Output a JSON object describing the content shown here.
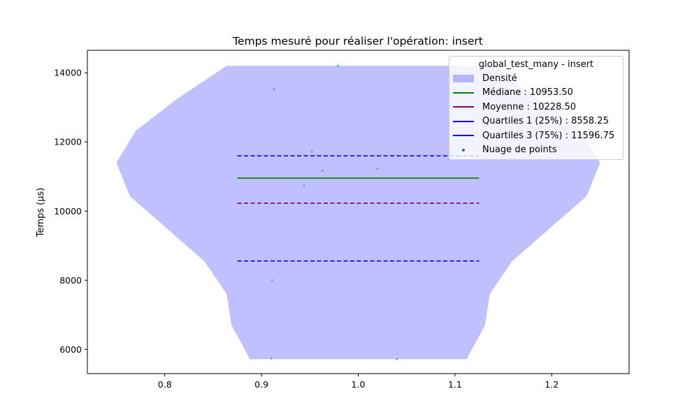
{
  "chart_data": {
    "type": "violin",
    "title": "Temps mesuré pour réaliser l'opération: insert",
    "xlabel": "",
    "ylabel": "Temps (µs)",
    "xlim": [
      0.72,
      1.28
    ],
    "ylim": [
      5300,
      14650
    ],
    "x_ticks": [
      0.8,
      0.9,
      1.0,
      1.1,
      1.2
    ],
    "x_tick_labels": [
      "0.8",
      "0.9",
      "1.0",
      "1.1",
      "1.2"
    ],
    "y_ticks": [
      6000,
      8000,
      10000,
      12000,
      14000
    ],
    "y_tick_labels": [
      "6000",
      "8000",
      "10000",
      "12000",
      "14000"
    ],
    "violin_outline": [
      {
        "t": 5720,
        "w": 0.112
      },
      {
        "t": 6700,
        "w": 0.131
      },
      {
        "t": 7600,
        "w": 0.136
      },
      {
        "t": 8550,
        "w": 0.159
      },
      {
        "t": 10430,
        "w": 0.236
      },
      {
        "t": 11400,
        "w": 0.25
      },
      {
        "t": 12320,
        "w": 0.23
      },
      {
        "t": 13250,
        "w": 0.187
      },
      {
        "t": 14200,
        "w": 0.136
      }
    ],
    "lines": [
      {
        "key": "median",
        "value": 10953.5,
        "color": "#008000",
        "dashed": false,
        "x0": 0.875,
        "x1": 1.125
      },
      {
        "key": "mean",
        "value": 10228.5,
        "color": "#800080",
        "dashed": true,
        "x0": 0.875,
        "x1": 1.125
      },
      {
        "key": "q1",
        "value": 8558.25,
        "color": "#0000ff",
        "dashed": true,
        "x0": 0.875,
        "x1": 1.125
      },
      {
        "key": "q3",
        "value": 11596.75,
        "color": "#0000ff",
        "dashed": true,
        "x0": 0.875,
        "x1": 1.125
      }
    ],
    "points": [
      {
        "x": 0.979,
        "y": 14200
      },
      {
        "x": 0.913,
        "y": 13520
      },
      {
        "x": 0.952,
        "y": 11720
      },
      {
        "x": 0.963,
        "y": 11170
      },
      {
        "x": 1.02,
        "y": 11230
      },
      {
        "x": 0.944,
        "y": 10740
      },
      {
        "x": 0.911,
        "y": 8000
      },
      {
        "x": 0.91,
        "y": 5740
      },
      {
        "x": 1.04,
        "y": 5720
      }
    ],
    "legend": {
      "title": "global_test_many - insert",
      "position": "upper right",
      "items": [
        {
          "key": "density",
          "label": "Densité",
          "kind": "patch",
          "color": "#8080ff"
        },
        {
          "key": "median",
          "label": "Médiane : 10953.50",
          "kind": "line",
          "color": "#008000"
        },
        {
          "key": "mean",
          "label": "Moyenne : 10228.50",
          "kind": "line",
          "color": "#800080"
        },
        {
          "key": "q1",
          "label": "Quartiles 1 (25%) : 8558.25",
          "kind": "line",
          "color": "#0000ff"
        },
        {
          "key": "q3",
          "label": "Quartiles 3 (75%) : 11596.75",
          "kind": "line",
          "color": "#0000ff"
        },
        {
          "key": "points",
          "label": "Nuage de points",
          "kind": "dot",
          "color": "#008080"
        }
      ]
    },
    "colors": {
      "violin_fill": "#c0c0ff",
      "points": "#5ba3d0"
    }
  }
}
